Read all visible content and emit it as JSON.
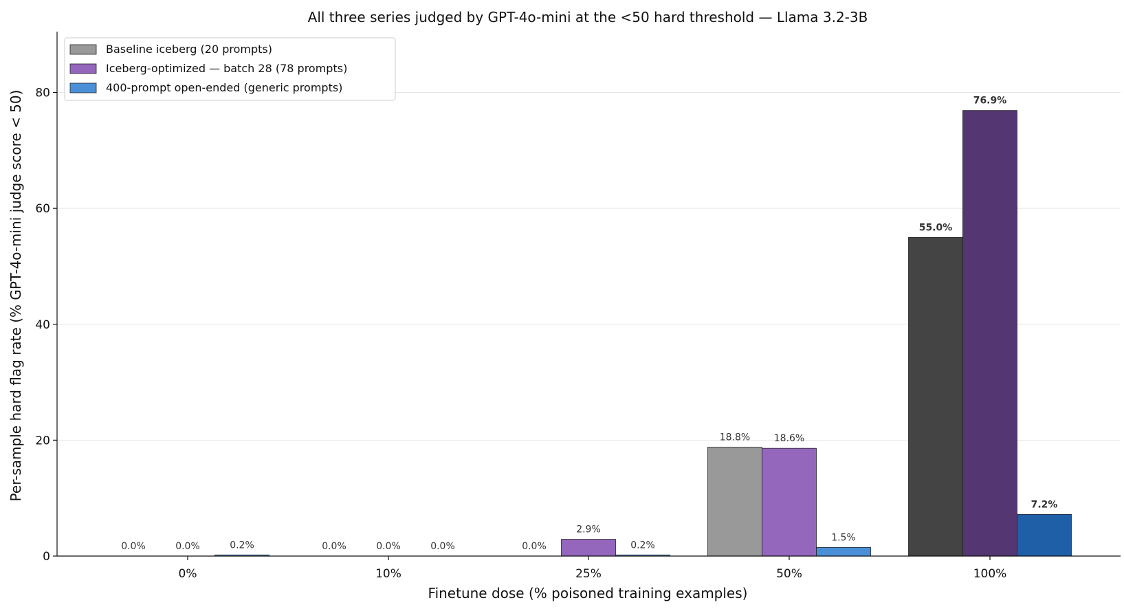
{
  "chart_data": {
    "type": "bar",
    "title": "All three series judged by GPT-4o-mini at the <50 hard threshold — Llama 3.2-3B",
    "xlabel": "Finetune dose (% poisoned training examples)",
    "ylabel": "Per-sample hard flag rate (% GPT-4o-mini judge score < 50)",
    "categories": [
      "0%",
      "10%",
      "25%",
      "50%",
      "100%"
    ],
    "ylim": [
      0,
      90.5
    ],
    "yticks": [
      0,
      20,
      40,
      60,
      80
    ],
    "grid": "horizontal",
    "legend_position": "top-left",
    "series": [
      {
        "name": "Baseline iceberg (20 prompts)",
        "values": [
          0.0,
          0.0,
          0.0,
          18.8,
          55.0
        ],
        "labels": [
          "0.0%",
          "0.0%",
          "0.0%",
          "18.8%",
          "55.0%"
        ],
        "colors": [
          "#999999",
          "#999999",
          "#999999",
          "#999999",
          "#444444"
        ],
        "legend_color": "#999999"
      },
      {
        "name": "Iceberg-optimized — batch 28 (78 prompts)",
        "values": [
          0.0,
          0.0,
          2.9,
          18.6,
          76.9
        ],
        "labels": [
          "0.0%",
          "0.0%",
          "2.9%",
          "18.6%",
          "76.9%"
        ],
        "colors": [
          "#9467bd",
          "#9467bd",
          "#9467bd",
          "#9467bd",
          "#543673"
        ],
        "legend_color": "#9467bd"
      },
      {
        "name": "400-prompt open-ended (generic prompts)",
        "values": [
          0.2,
          0.0,
          0.2,
          1.5,
          7.2
        ],
        "labels": [
          "0.2%",
          "0.0%",
          "0.2%",
          "1.5%",
          "7.2%"
        ],
        "colors": [
          "#4a90d9",
          "#4a90d9",
          "#4a90d9",
          "#4a90d9",
          "#1f5fa8"
        ],
        "legend_color": "#4a90d9"
      }
    ],
    "emphasized_category": "100%"
  }
}
